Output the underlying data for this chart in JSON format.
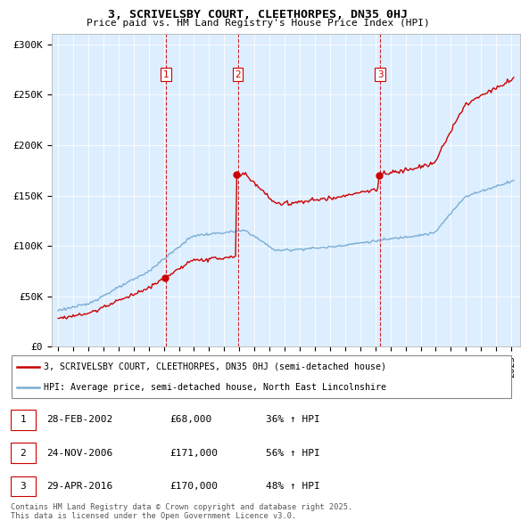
{
  "title1": "3, SCRIVELSBY COURT, CLEETHORPES, DN35 0HJ",
  "title2": "Price paid vs. HM Land Registry's House Price Index (HPI)",
  "sale_prices": [
    68000,
    171000,
    170000
  ],
  "sale_labels": [
    "1",
    "2",
    "3"
  ],
  "legend_property": "3, SCRIVELSBY COURT, CLEETHORPES, DN35 0HJ (semi-detached house)",
  "legend_hpi": "HPI: Average price, semi-detached house, North East Lincolnshire",
  "table_rows": [
    [
      "1",
      "28-FEB-2002",
      "£68,000",
      "36% ↑ HPI"
    ],
    [
      "2",
      "24-NOV-2006",
      "£171,000",
      "56% ↑ HPI"
    ],
    [
      "3",
      "29-APR-2016",
      "£170,000",
      "48% ↑ HPI"
    ]
  ],
  "footer": "Contains HM Land Registry data © Crown copyright and database right 2025.\nThis data is licensed under the Open Government Licence v3.0.",
  "property_color": "#cc0000",
  "hpi_color": "#7aadd4",
  "vline_color": "#cc0000",
  "plot_bg_color": "#ddeeff",
  "background_color": "#ffffff",
  "grid_color": "#ffffff",
  "ylim": [
    0,
    310000
  ],
  "yticks": [
    0,
    50000,
    100000,
    150000,
    200000,
    250000,
    300000
  ],
  "ytick_labels": [
    "£0",
    "£50K",
    "£100K",
    "£150K",
    "£200K",
    "£250K",
    "£300K"
  ]
}
